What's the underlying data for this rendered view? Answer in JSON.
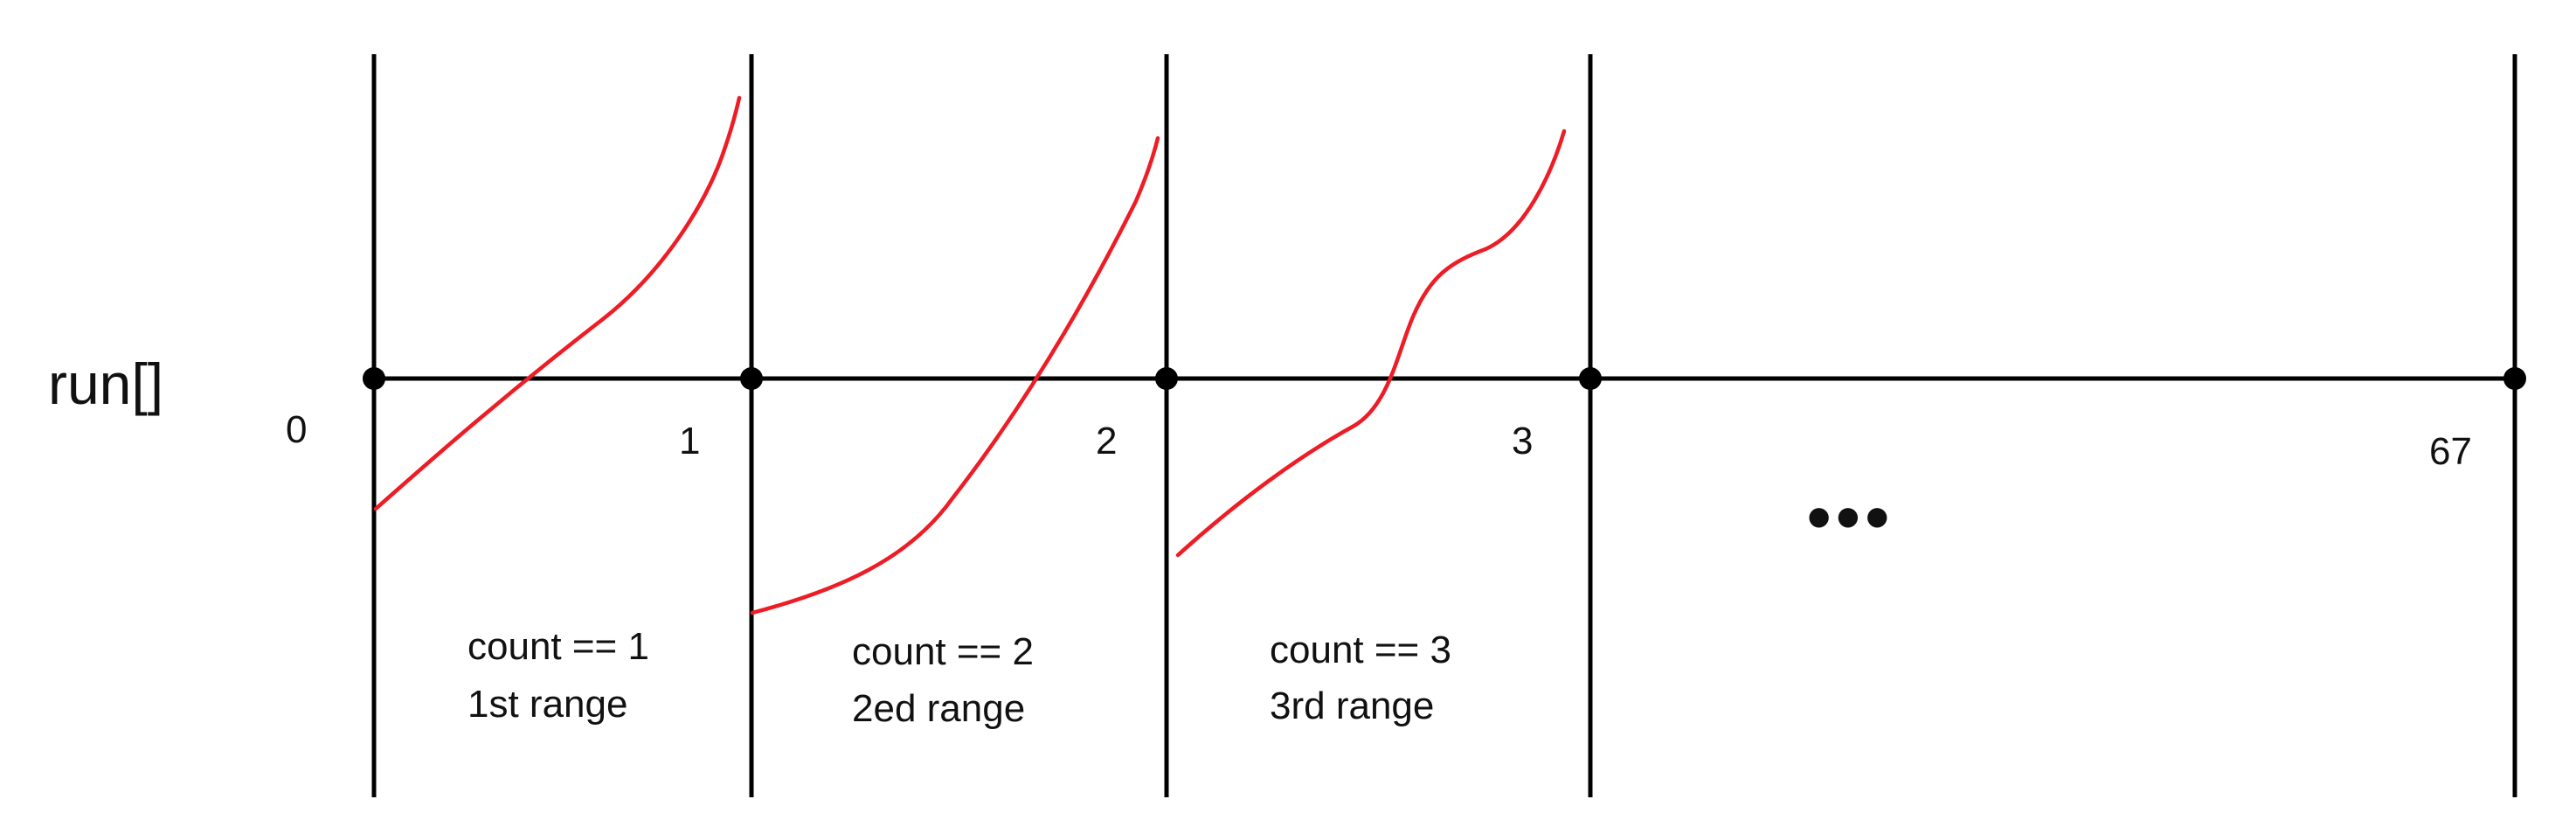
{
  "title": "run[]",
  "indices": [
    "0",
    "1",
    "2",
    "3",
    "67"
  ],
  "ellipsis": "•••",
  "ranges": [
    {
      "count": "count == 1",
      "label": "1st range"
    },
    {
      "count": "count == 2",
      "label": "2ed range"
    },
    {
      "count": "count == 3",
      "label": "3rd range"
    }
  ],
  "colors": {
    "axis": "#000000",
    "curve": "#ee1c25",
    "text": "#111111"
  }
}
